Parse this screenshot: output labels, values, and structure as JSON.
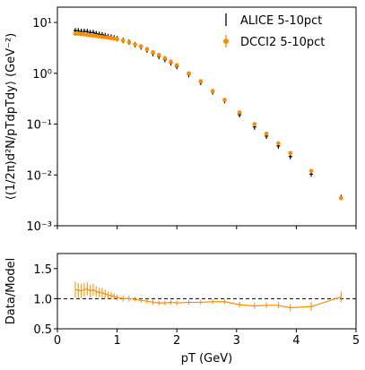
{
  "chart_data": [
    {
      "type": "scatter",
      "ylabel": "⟨(1/2π)d²N/pTdpTdy⟩ (GeV⁻²)",
      "log_y": true,
      "legend": "upper right",
      "xlim": [
        0,
        5
      ],
      "xticks": [
        0,
        1,
        2,
        3,
        4,
        5
      ],
      "ylim": [
        0.001,
        20
      ],
      "yticks": [
        {
          "value": 0.001,
          "label": "10⁻³"
        },
        {
          "value": 0.01,
          "label": "10⁻²"
        },
        {
          "value": 0.1,
          "label": "10⁻¹"
        },
        {
          "value": 1,
          "label": "10⁰"
        },
        {
          "value": 10,
          "label": "10¹"
        }
      ],
      "series": [
        {
          "name": "ALICE 5-10pct",
          "color": "#000000",
          "marker": "errorbar",
          "x": [
            0.3,
            0.35,
            0.4,
            0.45,
            0.5,
            0.55,
            0.6,
            0.65,
            0.7,
            0.75,
            0.8,
            0.85,
            0.9,
            0.95,
            1.0,
            1.1,
            1.2,
            1.3,
            1.4,
            1.5,
            1.6,
            1.7,
            1.8,
            1.9,
            2.0,
            2.2,
            2.4,
            2.6,
            2.8,
            3.05,
            3.3,
            3.5,
            3.7,
            3.9,
            4.25,
            4.75
          ],
          "values": [
            6.9,
            6.84,
            6.67,
            6.67,
            6.61,
            6.33,
            6.33,
            6.05,
            5.83,
            5.72,
            5.51,
            5.3,
            5.15,
            4.99,
            4.79,
            4.4,
            4.1,
            3.66,
            3.3,
            2.88,
            2.44,
            2.14,
            1.86,
            1.6,
            1.35,
            0.94,
            0.66,
            0.43,
            0.29,
            0.153,
            0.088,
            0.058,
            0.037,
            0.023,
            0.0104,
            0.0036
          ]
        },
        {
          "name": "DCCI2 5-10pct",
          "color": "#ff8c00",
          "marker": "circle",
          "x": [
            0.3,
            0.35,
            0.4,
            0.45,
            0.5,
            0.55,
            0.6,
            0.65,
            0.7,
            0.75,
            0.8,
            0.85,
            0.9,
            0.95,
            1.0,
            1.1,
            1.2,
            1.3,
            1.4,
            1.5,
            1.6,
            1.7,
            1.8,
            1.9,
            2.0,
            2.2,
            2.4,
            2.6,
            2.8,
            3.05,
            3.3,
            3.5,
            3.7,
            3.9,
            4.25,
            4.75
          ],
          "values": [
            6.0,
            6.0,
            5.9,
            5.8,
            5.7,
            5.6,
            5.5,
            5.4,
            5.3,
            5.2,
            5.1,
            5.0,
            4.9,
            4.8,
            4.7,
            4.4,
            4.1,
            3.7,
            3.4,
            3.0,
            2.6,
            2.3,
            2.0,
            1.7,
            1.45,
            1.0,
            0.7,
            0.45,
            0.3,
            0.17,
            0.1,
            0.065,
            0.042,
            0.027,
            0.012,
            0.0035
          ]
        }
      ]
    },
    {
      "type": "line",
      "xlabel": "pT (GeV)",
      "ylabel": "Data/Model",
      "reference_line": 1.0,
      "xlim": [
        0,
        5
      ],
      "xticks": [
        0,
        1,
        2,
        3,
        4,
        5
      ],
      "ylim": [
        0.5,
        1.75
      ],
      "yticks": [
        {
          "value": 0.5,
          "label": "0.5"
        },
        {
          "value": 1.0,
          "label": "1.0"
        },
        {
          "value": 1.5,
          "label": "1.5"
        }
      ],
      "series": [
        {
          "color": "#ff8c00",
          "x": [
            0.3,
            0.35,
            0.4,
            0.45,
            0.5,
            0.55,
            0.6,
            0.65,
            0.7,
            0.75,
            0.8,
            0.85,
            0.9,
            0.95,
            1.0,
            1.1,
            1.2,
            1.3,
            1.4,
            1.5,
            1.6,
            1.7,
            1.8,
            1.9,
            2.0,
            2.2,
            2.4,
            2.6,
            2.8,
            3.05,
            3.3,
            3.5,
            3.7,
            3.9,
            4.25,
            4.75
          ],
          "values": [
            1.15,
            1.14,
            1.13,
            1.15,
            1.16,
            1.13,
            1.15,
            1.12,
            1.1,
            1.1,
            1.08,
            1.06,
            1.05,
            1.04,
            1.02,
            1.0,
            1.0,
            0.99,
            0.97,
            0.96,
            0.94,
            0.93,
            0.93,
            0.94,
            0.93,
            0.94,
            0.94,
            0.95,
            0.95,
            0.9,
            0.88,
            0.89,
            0.89,
            0.85,
            0.87,
            1.03
          ],
          "errors": [
            0.13,
            0.12,
            0.12,
            0.11,
            0.11,
            0.1,
            0.1,
            0.09,
            0.08,
            0.08,
            0.07,
            0.06,
            0.06,
            0.05,
            0.05,
            0.05,
            0.05,
            0.04,
            0.04,
            0.04,
            0.04,
            0.04,
            0.04,
            0.04,
            0.04,
            0.04,
            0.04,
            0.04,
            0.04,
            0.05,
            0.05,
            0.05,
            0.05,
            0.06,
            0.07,
            0.09
          ]
        }
      ]
    }
  ]
}
